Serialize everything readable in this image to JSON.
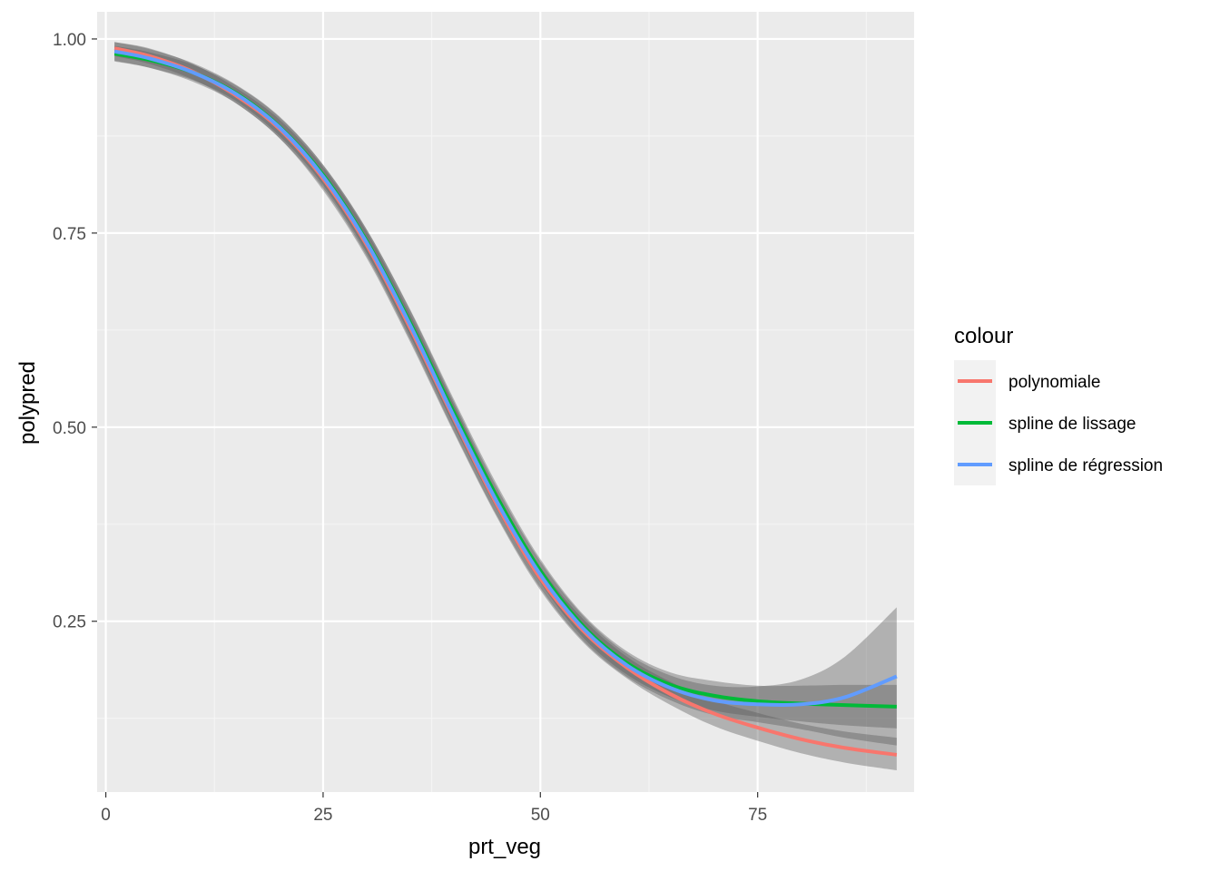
{
  "chart_data": {
    "type": "line",
    "xlabel": "prt_veg",
    "ylabel": "polypred",
    "xlim": [
      -1,
      93
    ],
    "ylim": [
      0.03,
      1.035
    ],
    "x_ticks": [
      0,
      25,
      50,
      75
    ],
    "x_tick_labels": [
      "0",
      "25",
      "50",
      "75"
    ],
    "y_ticks": [
      0.25,
      0.5,
      0.75,
      1.0
    ],
    "y_tick_labels": [
      "0.25",
      "0.50",
      "0.75",
      "1.00"
    ],
    "grid": true,
    "legend": {
      "title": "colour",
      "position": "right"
    },
    "x": [
      1,
      5,
      10,
      15,
      20,
      25,
      30,
      35,
      40,
      45,
      50,
      55,
      60,
      65,
      70,
      75,
      80,
      85,
      91
    ],
    "series": [
      {
        "name": "polynomiale",
        "color": "#F8766D",
        "values": [
          0.988,
          0.978,
          0.958,
          0.927,
          0.884,
          0.82,
          0.735,
          0.628,
          0.512,
          0.4,
          0.305,
          0.237,
          0.19,
          0.156,
          0.131,
          0.113,
          0.098,
          0.087,
          0.078
        ],
        "lower": [
          0.978,
          0.968,
          0.948,
          0.917,
          0.872,
          0.805,
          0.718,
          0.61,
          0.494,
          0.384,
          0.29,
          0.222,
          0.176,
          0.142,
          0.115,
          0.096,
          0.08,
          0.068,
          0.058
        ],
        "upper": [
          0.996,
          0.988,
          0.968,
          0.937,
          0.896,
          0.835,
          0.752,
          0.646,
          0.53,
          0.416,
          0.32,
          0.252,
          0.204,
          0.172,
          0.148,
          0.132,
          0.118,
          0.108,
          0.1
        ]
      },
      {
        "name": "spline de lissage",
        "color": "#00BA38",
        "values": [
          0.981,
          0.973,
          0.957,
          0.93,
          0.887,
          0.825,
          0.74,
          0.635,
          0.52,
          0.41,
          0.315,
          0.243,
          0.196,
          0.168,
          0.154,
          0.147,
          0.144,
          0.142,
          0.14
        ],
        "lower": [
          0.971,
          0.963,
          0.947,
          0.92,
          0.875,
          0.812,
          0.725,
          0.618,
          0.503,
          0.394,
          0.3,
          0.228,
          0.181,
          0.152,
          0.135,
          0.127,
          0.121,
          0.116,
          0.112
        ],
        "upper": [
          0.991,
          0.983,
          0.967,
          0.94,
          0.899,
          0.838,
          0.755,
          0.652,
          0.537,
          0.426,
          0.33,
          0.258,
          0.211,
          0.184,
          0.173,
          0.167,
          0.167,
          0.168,
          0.168
        ]
      },
      {
        "name": "spline de régression",
        "color": "#619CFF",
        "values": [
          0.984,
          0.975,
          0.957,
          0.929,
          0.886,
          0.823,
          0.738,
          0.632,
          0.515,
          0.404,
          0.31,
          0.24,
          0.193,
          0.164,
          0.148,
          0.143,
          0.143,
          0.152,
          0.179
        ],
        "lower": [
          0.972,
          0.963,
          0.945,
          0.917,
          0.872,
          0.808,
          0.721,
          0.613,
          0.496,
          0.386,
          0.293,
          0.224,
          0.178,
          0.148,
          0.129,
          0.12,
          0.111,
          0.1,
          0.09
        ],
        "upper": [
          0.996,
          0.987,
          0.969,
          0.941,
          0.9,
          0.838,
          0.755,
          0.651,
          0.534,
          0.422,
          0.327,
          0.256,
          0.208,
          0.18,
          0.167,
          0.166,
          0.175,
          0.204,
          0.268
        ]
      }
    ]
  },
  "colors": {
    "panel_background": "#EBEBEB",
    "grid_major": "#FFFFFF",
    "grid_minor": "#F5F5F5",
    "ribbon": "#595959",
    "legend_key_background": "#F2F2F2"
  }
}
